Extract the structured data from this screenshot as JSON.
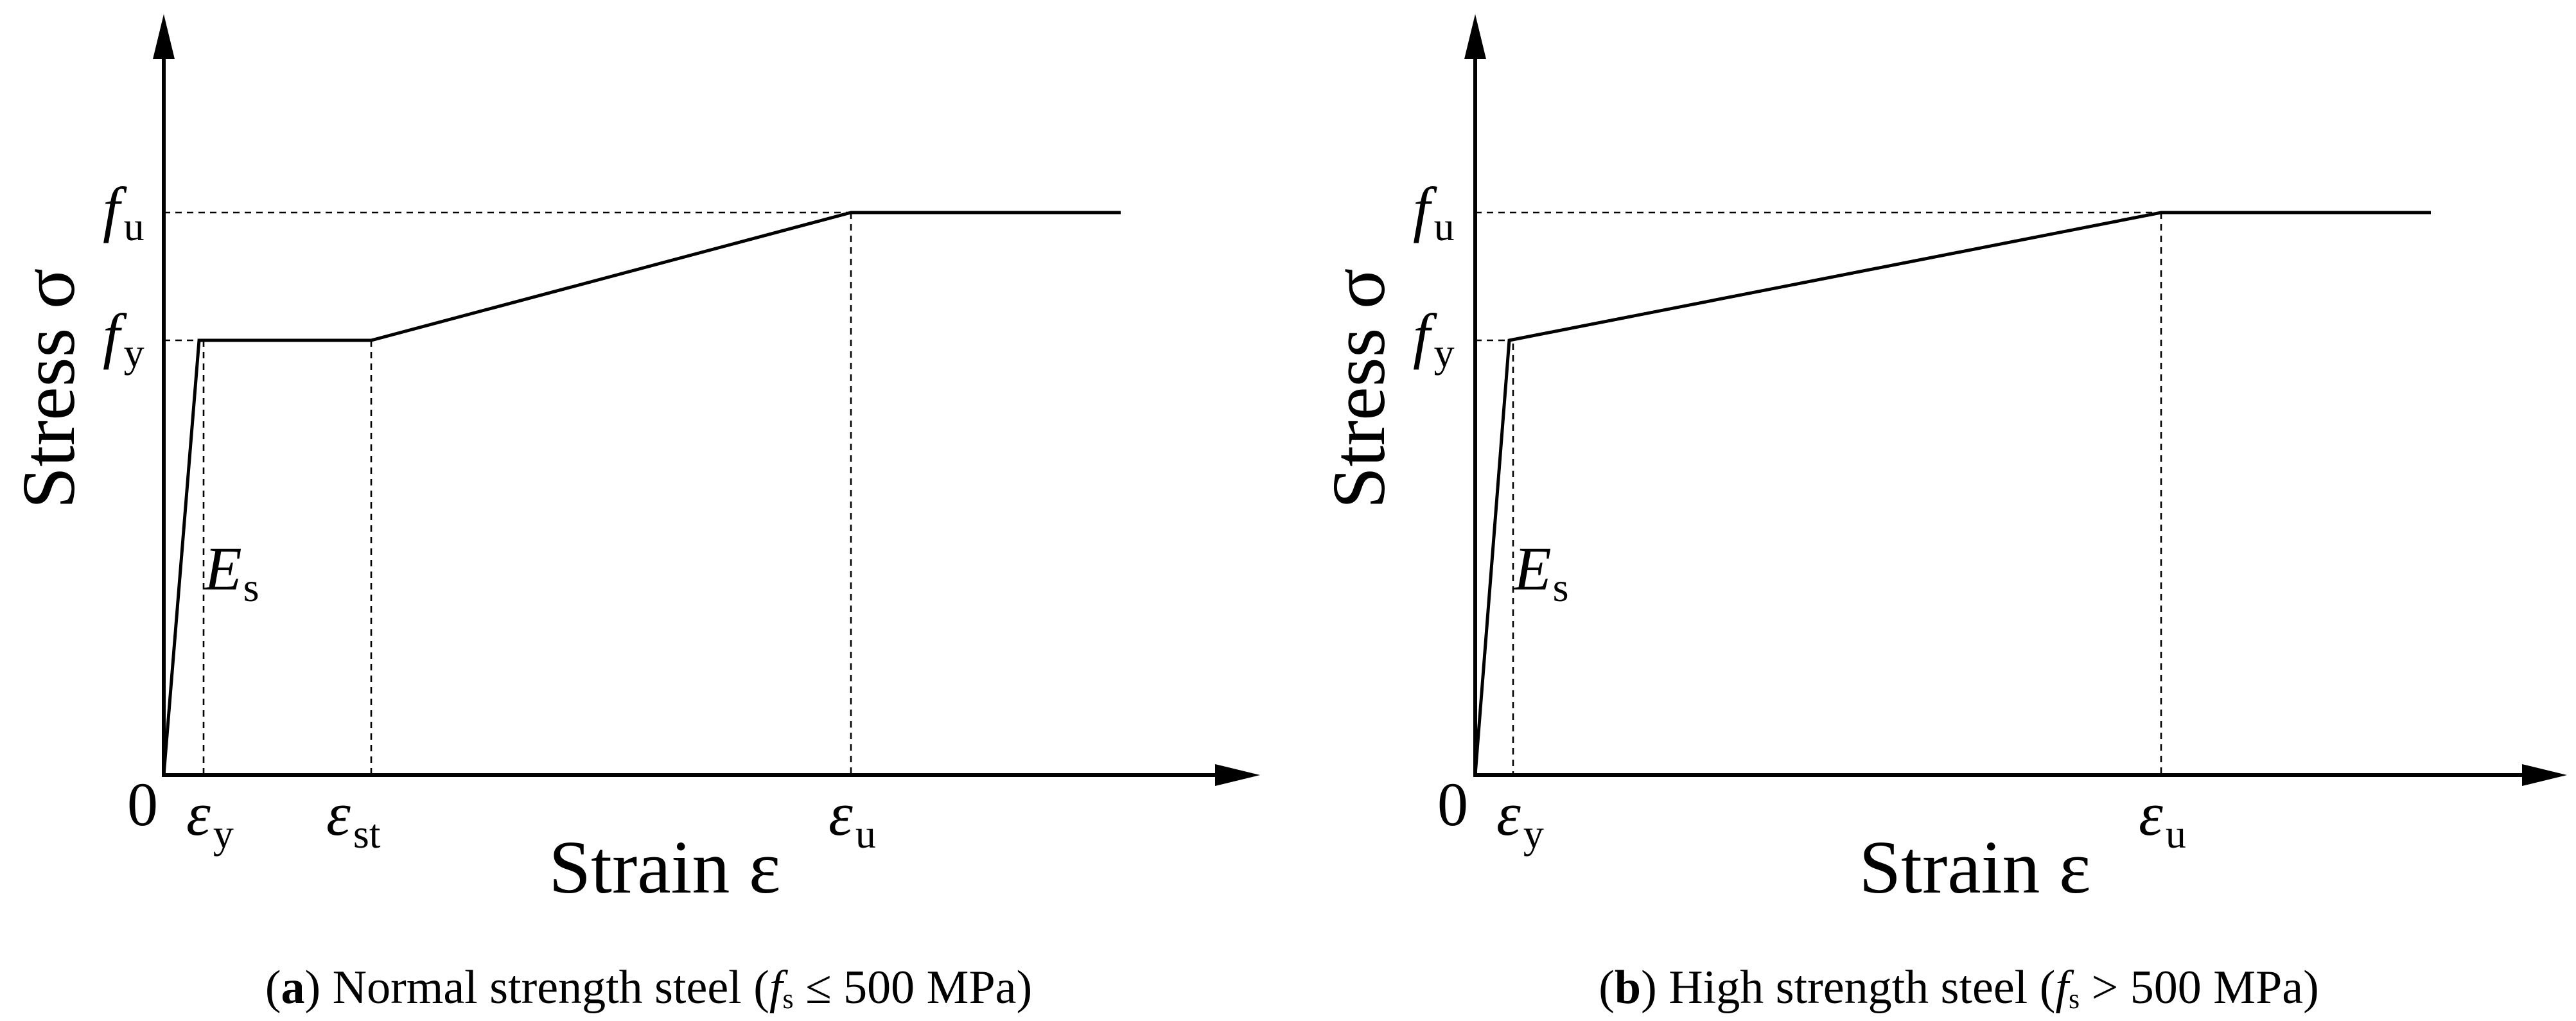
{
  "panels": [
    {
      "id": "a",
      "y_axis_title": "Stress σ",
      "x_axis_title": "Strain ε",
      "origin_label": "0",
      "stress_levels": [
        {
          "symbol": "f",
          "subscript": "u"
        },
        {
          "symbol": "f",
          "subscript": "y"
        }
      ],
      "strain_points": [
        {
          "symbol": "ε",
          "subscript": "y"
        },
        {
          "symbol": "ε",
          "subscript": "st"
        },
        {
          "symbol": "ε",
          "subscript": "u"
        }
      ],
      "modulus_label": {
        "symbol": "E",
        "subscript": "s"
      },
      "caption": {
        "tag": "a",
        "text_before": " Normal strength steel (",
        "fs_symbol": "f",
        "fs_sub": "s",
        "text_after": " ≤ 500 MPa)"
      }
    },
    {
      "id": "b",
      "y_axis_title": "Stress σ",
      "x_axis_title": "Strain ε",
      "origin_label": "0",
      "stress_levels": [
        {
          "symbol": "f",
          "subscript": "u"
        },
        {
          "symbol": "f",
          "subscript": "y"
        }
      ],
      "strain_points": [
        {
          "symbol": "ε",
          "subscript": "y"
        },
        {
          "symbol": "ε",
          "subscript": "u"
        }
      ],
      "modulus_label": {
        "symbol": "E",
        "subscript": "s"
      },
      "caption": {
        "tag": "b",
        "text_before": " High strength steel (",
        "fs_symbol": "f",
        "fs_sub": "s",
        "text_after": " > 500 MPa)"
      }
    }
  ]
}
